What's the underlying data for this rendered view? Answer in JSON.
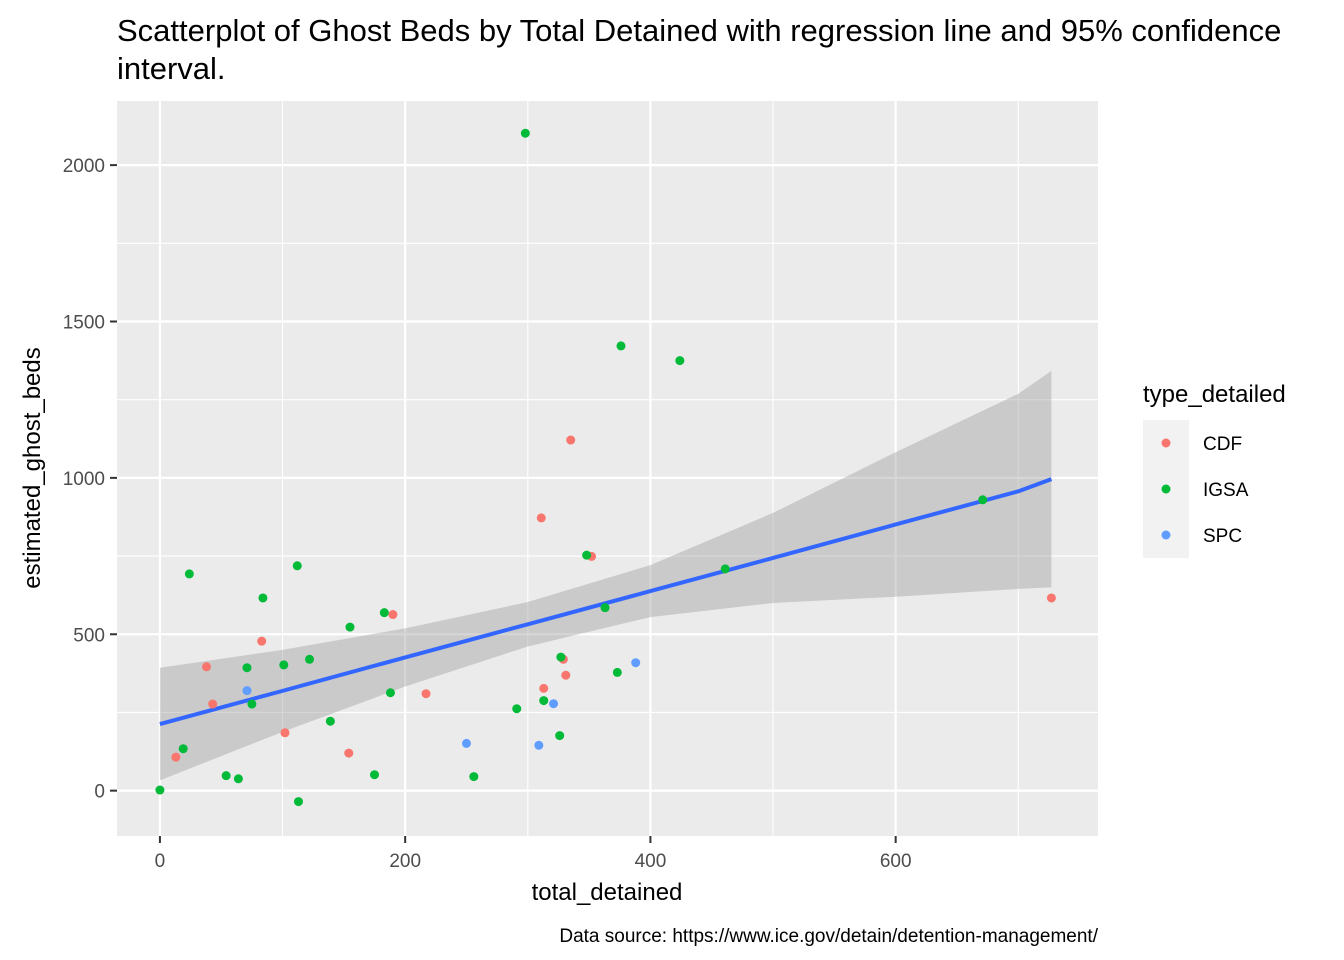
{
  "chart_data": {
    "type": "scatter",
    "title": "Scatterplot of Ghost Beds by Total Detained with regression line and 95% confidence interval.",
    "xlabel": "total_detained",
    "ylabel": "estimated_ghost_beds",
    "caption": "Data source: https://www.ice.gov/detain/detention-management/",
    "xlim": [
      -35,
      765
    ],
    "ylim": [
      -145,
      2205
    ],
    "x_ticks": [
      0,
      200,
      400,
      600
    ],
    "y_ticks": [
      0,
      500,
      1000,
      1500,
      2000
    ],
    "grid": true,
    "legend": {
      "title": "type_detailed",
      "position": "right",
      "entries": [
        {
          "name": "CDF",
          "color": "#F8766D"
        },
        {
          "name": "IGSA",
          "color": "#00BA38"
        },
        {
          "name": "SPC",
          "color": "#619CFF"
        }
      ]
    },
    "series": [
      {
        "name": "CDF",
        "color": "#F8766D",
        "points": [
          {
            "x": 13,
            "y": 107
          },
          {
            "x": 38,
            "y": 396
          },
          {
            "x": 43,
            "y": 277
          },
          {
            "x": 83,
            "y": 478
          },
          {
            "x": 102,
            "y": 185
          },
          {
            "x": 154,
            "y": 120
          },
          {
            "x": 190,
            "y": 563
          },
          {
            "x": 217,
            "y": 310
          },
          {
            "x": 311,
            "y": 872
          },
          {
            "x": 313,
            "y": 327
          },
          {
            "x": 329,
            "y": 420
          },
          {
            "x": 331,
            "y": 369
          },
          {
            "x": 335,
            "y": 1121
          },
          {
            "x": 352,
            "y": 749
          },
          {
            "x": 727,
            "y": 616
          }
        ]
      },
      {
        "name": "IGSA",
        "color": "#00BA38",
        "points": [
          {
            "x": 0,
            "y": 2
          },
          {
            "x": 19,
            "y": 134
          },
          {
            "x": 24,
            "y": 693
          },
          {
            "x": 54,
            "y": 48
          },
          {
            "x": 64,
            "y": 38
          },
          {
            "x": 71,
            "y": 393
          },
          {
            "x": 75,
            "y": 277
          },
          {
            "x": 84,
            "y": 616
          },
          {
            "x": 101,
            "y": 402
          },
          {
            "x": 112,
            "y": 719
          },
          {
            "x": 113,
            "y": -35
          },
          {
            "x": 122,
            "y": 420
          },
          {
            "x": 139,
            "y": 222
          },
          {
            "x": 155,
            "y": 523
          },
          {
            "x": 175,
            "y": 51
          },
          {
            "x": 183,
            "y": 569
          },
          {
            "x": 188,
            "y": 313
          },
          {
            "x": 256,
            "y": 45
          },
          {
            "x": 291,
            "y": 262
          },
          {
            "x": 298,
            "y": 2102
          },
          {
            "x": 313,
            "y": 288
          },
          {
            "x": 326,
            "y": 176
          },
          {
            "x": 327,
            "y": 427
          },
          {
            "x": 348,
            "y": 753
          },
          {
            "x": 363,
            "y": 585
          },
          {
            "x": 373,
            "y": 378
          },
          {
            "x": 376,
            "y": 1422
          },
          {
            "x": 424,
            "y": 1375
          },
          {
            "x": 461,
            "y": 709
          },
          {
            "x": 671,
            "y": 930
          }
        ]
      },
      {
        "name": "SPC",
        "color": "#619CFF",
        "points": [
          {
            "x": 71,
            "y": 320
          },
          {
            "x": 250,
            "y": 151
          },
          {
            "x": 309,
            "y": 145
          },
          {
            "x": 321,
            "y": 278
          },
          {
            "x": 388,
            "y": 409
          }
        ]
      }
    ],
    "regression": {
      "color": "#3366FF",
      "x": [
        0,
        100,
        200,
        300,
        400,
        500,
        600,
        700,
        727
      ],
      "fit": [
        213,
        319,
        426,
        532,
        638,
        744,
        851,
        957,
        996
      ],
      "lower": [
        33,
        188,
        333,
        461,
        555,
        600,
        620,
        645,
        650
      ],
      "upper": [
        393,
        450,
        519,
        603,
        721,
        888,
        1082,
        1269,
        1342
      ]
    }
  }
}
